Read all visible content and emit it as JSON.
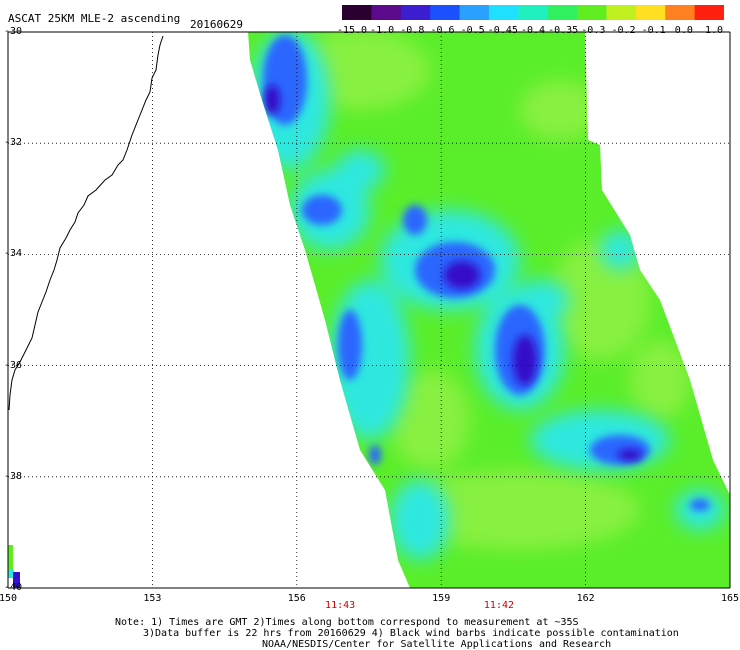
{
  "header": {
    "title": "ASCAT 25KM MLE-2 ascending",
    "date": "20160629"
  },
  "colorbar": {
    "labels": [
      "-15.0",
      "-1.0",
      "-0.8",
      "-0.6",
      "-0.5",
      "-0.45",
      "-0.4",
      "-0.35",
      "-0.3",
      "-0.2",
      "-0.1",
      "0.0",
      "1.0"
    ],
    "colors": [
      "#2a0030",
      "#5a0a8a",
      "#3c1ed0",
      "#1a50ff",
      "#2aa0ff",
      "#20e0ff",
      "#20f0c0",
      "#30f060",
      "#60ee20",
      "#c0f020",
      "#ffe020",
      "#ff8020",
      "#ff2010"
    ]
  },
  "map": {
    "lat_labels": [
      "-30",
      "-32",
      "-34",
      "-36",
      "-38",
      "-40"
    ],
    "lon_labels": [
      "150",
      "153",
      "156",
      "159",
      "162",
      "165"
    ],
    "times": [
      {
        "label": "11:43",
        "lon": 156.9
      },
      {
        "label": "11:42",
        "lon": 160.2
      }
    ]
  },
  "notes": {
    "line1": "Note: 1) Times are GMT 2)Times along bottom correspond to measurement at ~35S",
    "line2": "3)Data buffer is 22 hrs from 20160629 4) Black wind barbs indicate possible contamination",
    "line3": "NOAA/NESDIS/Center for Satellite Applications and Research"
  },
  "colors": {
    "swath_base": "#5aee2a",
    "swath_light": "#88f040",
    "low_cyan": "#2ee8e0",
    "low_blue": "#2a66ff",
    "low_deep": "#3410c8",
    "low_purple": "#5a0a9a",
    "time_red": "#d00000"
  }
}
